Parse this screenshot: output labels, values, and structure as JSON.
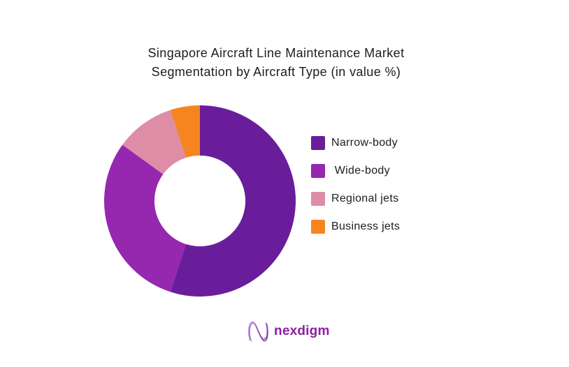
{
  "page": {
    "background": "#ffffff"
  },
  "header": {
    "title_line1": "Singapore Aircraft Line Maintenance Market",
    "title_line2": "Segmentation by Aircraft Type (in value %)"
  },
  "chart_data": {
    "type": "pie",
    "variant": "donut",
    "title": "Singapore Aircraft Line Maintenance Market Segmentation by Aircraft Type (in value %)",
    "unit": "value %",
    "labels": [
      "Narrow-body",
      " Wide-body",
      "Regional jets",
      "Business jets"
    ],
    "values": [
      55,
      30,
      10,
      5
    ],
    "colors": [
      "#691D9B",
      "#9627AF",
      "#DF8CA6",
      "#F68520"
    ],
    "start_angle_deg": 0,
    "direction": "clockwise",
    "inner_radius_ratio": 0.475,
    "legend_position": "right",
    "data_labels_shown": false
  },
  "footer": {
    "logo_text": "nexdigm",
    "logo_text_color": "#8B1FA0",
    "logo_icon": "nexdigm-wave-n-icon",
    "logo_gradient_start": "#B36AE2",
    "logo_gradient_end": "#6A1B9A"
  }
}
